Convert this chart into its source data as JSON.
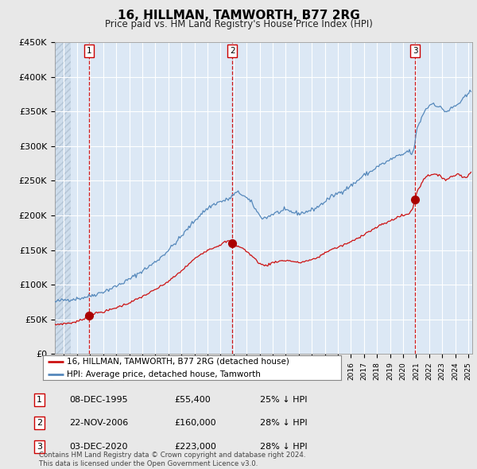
{
  "title": "16, HILLMAN, TAMWORTH, B77 2RG",
  "subtitle": "Price paid vs. HM Land Registry's House Price Index (HPI)",
  "ylim": [
    0,
    450000
  ],
  "yticks": [
    0,
    50000,
    100000,
    150000,
    200000,
    250000,
    300000,
    350000,
    400000,
    450000
  ],
  "ytick_labels": [
    "£0",
    "£50K",
    "£100K",
    "£150K",
    "£200K",
    "£250K",
    "£300K",
    "£350K",
    "£400K",
    "£450K"
  ],
  "xlim_start": 1993.3,
  "xlim_end": 2025.3,
  "bg_color": "#e8e8e8",
  "plot_bg_color": "#dce8f5",
  "grid_color": "#ffffff",
  "sale_dates": [
    1995.94,
    2006.9,
    2020.92
  ],
  "sale_prices": [
    55400,
    160000,
    223000
  ],
  "sale_labels": [
    "1",
    "2",
    "3"
  ],
  "vline_color": "#cc0000",
  "sale_marker_color": "#aa0000",
  "hpi_line_color": "#5588bb",
  "price_line_color": "#cc1111",
  "legend_label_price": "16, HILLMAN, TAMWORTH, B77 2RG (detached house)",
  "legend_label_hpi": "HPI: Average price, detached house, Tamworth",
  "table_entries": [
    {
      "num": "1",
      "date": "08-DEC-1995",
      "price": "£55,400",
      "hpi": "25% ↓ HPI"
    },
    {
      "num": "2",
      "date": "22-NOV-2006",
      "price": "£160,000",
      "hpi": "28% ↓ HPI"
    },
    {
      "num": "3",
      "date": "03-DEC-2020",
      "price": "£223,000",
      "hpi": "28% ↓ HPI"
    }
  ],
  "footer": "Contains HM Land Registry data © Crown copyright and database right 2024.\nThis data is licensed under the Open Government Licence v3.0."
}
